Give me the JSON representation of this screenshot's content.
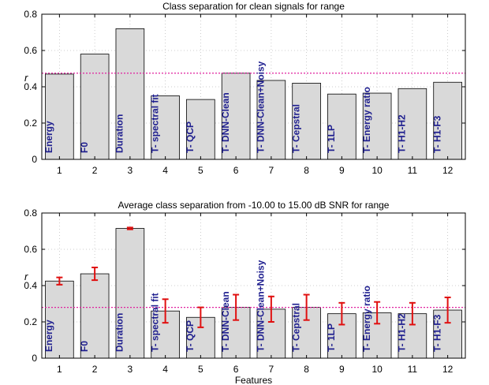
{
  "chart_data": [
    {
      "type": "bar",
      "title": "Class separation for clean signals for range",
      "xlabel": "",
      "ylabel": "r",
      "ylim": [
        0,
        0.8
      ],
      "yticks": [
        "0",
        "0.2",
        "0.4",
        "0.6",
        "0.8"
      ],
      "categories": [
        "1",
        "2",
        "3",
        "4",
        "5",
        "6",
        "7",
        "8",
        "9",
        "10",
        "11",
        "12"
      ],
      "bar_labels": [
        "Energy",
        "F0",
        "Duration",
        "T- spectral fit",
        "T- QCP",
        "T- DNN-Clean",
        "T- DNN-Clean+Noisy",
        "T- Cepstral",
        "T- 1LP",
        "T- Energy ratio",
        "T- H1-H2",
        "T- H1-F3"
      ],
      "values": [
        0.47,
        0.58,
        0.72,
        0.35,
        0.33,
        0.475,
        0.435,
        0.42,
        0.36,
        0.365,
        0.39,
        0.425
      ],
      "reference_line": 0.475,
      "grid": true
    },
    {
      "type": "bar",
      "title": "Average class separation from -10.00 to 15.00 dB SNR for range",
      "xlabel": "Features",
      "ylabel": "r",
      "ylim": [
        0,
        0.8
      ],
      "yticks": [
        "0",
        "0.2",
        "0.4",
        "0.6",
        "0.8"
      ],
      "categories": [
        "1",
        "2",
        "3",
        "4",
        "5",
        "6",
        "7",
        "8",
        "9",
        "10",
        "11",
        "12"
      ],
      "bar_labels": [
        "Energy",
        "F0",
        "Duration",
        "T- spectral fit",
        "T- QCP",
        "T- DNN-Clean",
        "T- DNN-Clean+Noisy",
        "T- Cepstral",
        "T- 1LP",
        "T- Energy ratio",
        "T- H1-H2",
        "T- H1-F3"
      ],
      "values": [
        0.425,
        0.465,
        0.715,
        0.26,
        0.225,
        0.28,
        0.27,
        0.28,
        0.245,
        0.25,
        0.245,
        0.265
      ],
      "errors": [
        0.02,
        0.035,
        0.005,
        0.065,
        0.055,
        0.07,
        0.07,
        0.07,
        0.06,
        0.06,
        0.06,
        0.07
      ],
      "reference_line": 0.28,
      "grid": true
    }
  ],
  "colors": {
    "bar_fill": "#d9d9d9",
    "bar_stroke": "#000000",
    "label_text": "#1f1f8f",
    "error_bar": "#e01010",
    "reference_line": "#e0209f",
    "grid": "#bfbfbf"
  }
}
